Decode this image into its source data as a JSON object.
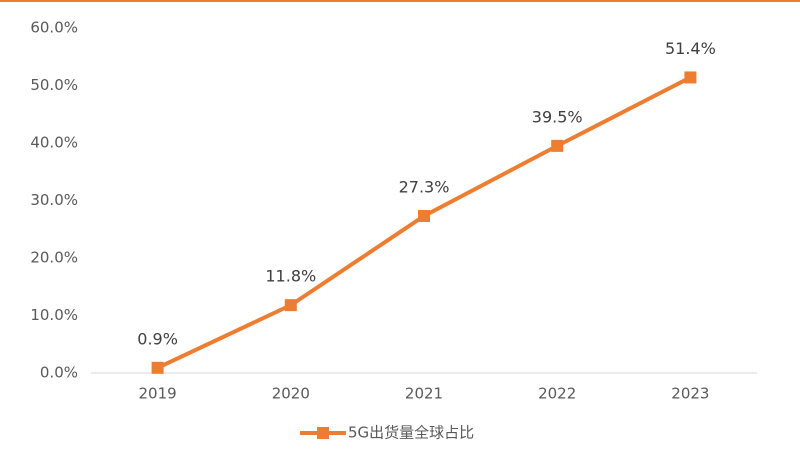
{
  "chart_data": {
    "type": "line",
    "categories": [
      "2019",
      "2020",
      "2021",
      "2022",
      "2023"
    ],
    "series": [
      {
        "name": "5G出货量全球占比",
        "color": "#ed7d31",
        "values": [
          0.9,
          11.8,
          27.3,
          39.5,
          51.4
        ],
        "value_labels": [
          "0.9%",
          "11.8%",
          "27.3%",
          "39.5%",
          "51.4%"
        ]
      }
    ],
    "ylim": [
      0,
      60
    ],
    "yticks": [
      {
        "value": 0,
        "label": "0.0%"
      },
      {
        "value": 10,
        "label": "10.0%"
      },
      {
        "value": 20,
        "label": "20.0%"
      },
      {
        "value": 30,
        "label": "30.0%"
      },
      {
        "value": 40,
        "label": "40.0%"
      },
      {
        "value": 50,
        "label": "50.0%"
      },
      {
        "value": 60,
        "label": "60.0%"
      }
    ],
    "grid": false,
    "legend": "bottom"
  }
}
